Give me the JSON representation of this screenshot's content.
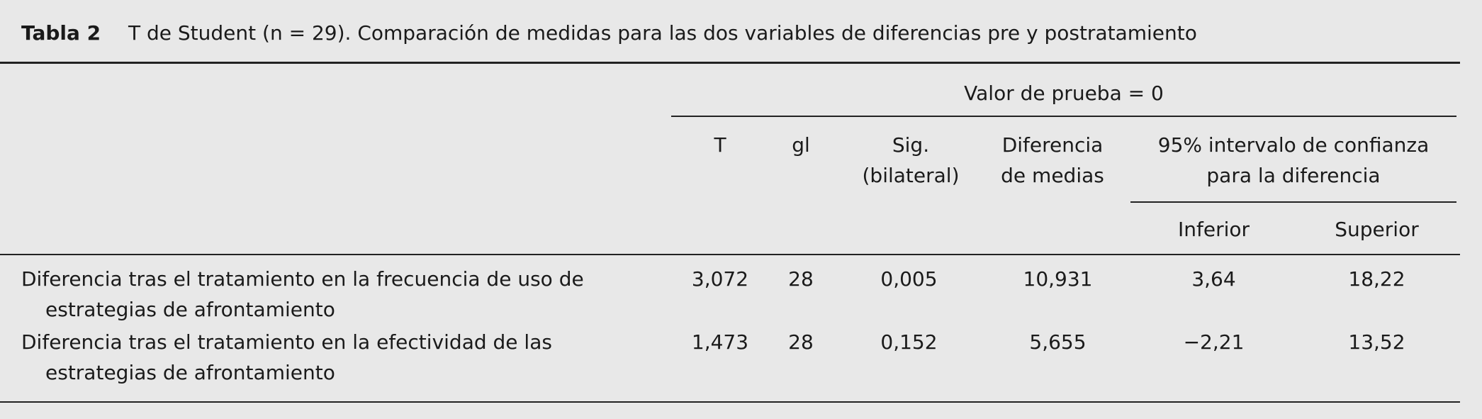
{
  "caption": {
    "label": "Tabla 2",
    "text": "T de Student (n = 29). Comparación de medidas para las dos variables de diferencias pre y postratamiento"
  },
  "table": {
    "group_header": "Valor de prueba = 0",
    "columns": [
      "T",
      "gl",
      "Sig. (bilateral)",
      "Diferencia de medias",
      "95% intervalo de confianza para la diferencia"
    ],
    "subcolumns": [
      "Inferior",
      "Superior"
    ],
    "rows": [
      [
        "Diferencia tras el tratamiento en la frecuencia de uso de estrategias de afrontamiento",
        "3,072",
        "28",
        "0,005",
        "10,931",
        "3,64",
        "18,22"
      ],
      [
        "Diferencia tras el tratamiento en la efectividad de las estrategias de afrontamiento",
        "1,473",
        "28",
        "0,152",
        "5,655",
        "−2,21",
        "13,52"
      ]
    ]
  }
}
